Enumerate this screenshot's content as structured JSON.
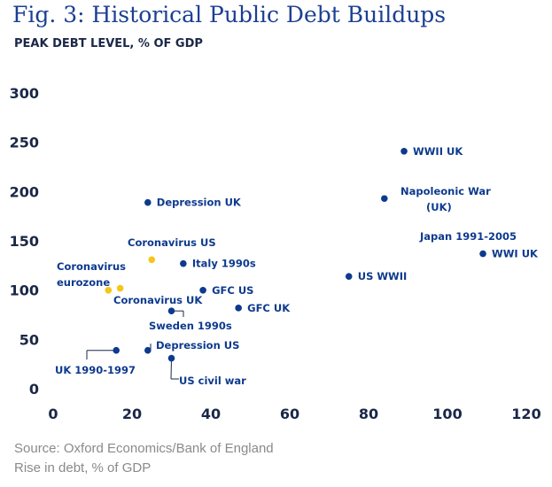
{
  "title": "Fig. 3: Historical Public Debt Buildups",
  "subtitle": "PEAK DEBT LEVEL, % OF GDP",
  "source": "Source: Oxford Economics/Bank of England",
  "xlabel": "Rise in debt, % of GDP",
  "colors": {
    "title": "#1c3f94",
    "historical": "#0d3a8e",
    "coronavirus": "#f5c518",
    "label": "#0d3a8e",
    "axis_text": "#1a2747",
    "footer": "#8a8a8a"
  },
  "chart_data": {
    "type": "scatter",
    "title": "Fig. 3: Historical Public Debt Buildups",
    "ylabel": "PEAK DEBT LEVEL, % OF GDP",
    "xlabel": "Rise in debt, % of GDP",
    "xlim": [
      0,
      120
    ],
    "ylim": [
      0,
      300
    ],
    "xticks": [
      0,
      20,
      40,
      60,
      80,
      100,
      120
    ],
    "yticks": [
      0,
      50,
      100,
      150,
      200,
      250,
      300
    ],
    "grid": false,
    "points": [
      {
        "label": "WWII UK",
        "x": 89,
        "y": 240,
        "group": "historical"
      },
      {
        "label": "Napoleonic War",
        "label2": "(UK)",
        "x": 84,
        "y": 192,
        "group": "historical"
      },
      {
        "label": "Depression UK",
        "x": 24,
        "y": 188,
        "group": "historical"
      },
      {
        "label": "Japan 1991-2005",
        "x": null,
        "y": null,
        "group": "historical",
        "label_only": true
      },
      {
        "label": "WWI UK",
        "x": 109,
        "y": 136,
        "group": "historical"
      },
      {
        "label": "Italy 1990s",
        "x": 33,
        "y": 126,
        "group": "historical"
      },
      {
        "label": "US WWII",
        "x": 75,
        "y": 113,
        "group": "historical"
      },
      {
        "label": "GFC US",
        "x": 38,
        "y": 99,
        "group": "historical"
      },
      {
        "label": "GFC UK",
        "x": 47,
        "y": 81,
        "group": "historical"
      },
      {
        "label": "Sweden 1990s",
        "x": 30,
        "y": 78,
        "group": "historical"
      },
      {
        "label": "Depression US",
        "x": 24,
        "y": 38,
        "group": "historical"
      },
      {
        "label": "UK 1990-1997",
        "x": 16,
        "y": 38,
        "group": "historical"
      },
      {
        "label": "US civil war",
        "x": 30,
        "y": 30,
        "group": "historical"
      },
      {
        "label": "Coronavirus US",
        "x": 25,
        "y": 130,
        "group": "coronavirus"
      },
      {
        "label": "Coronavirus UK",
        "x": 17,
        "y": 101,
        "group": "coronavirus"
      },
      {
        "label": "Coronavirus",
        "label2": "eurozone",
        "x": 14,
        "y": 99,
        "group": "coronavirus"
      }
    ]
  }
}
